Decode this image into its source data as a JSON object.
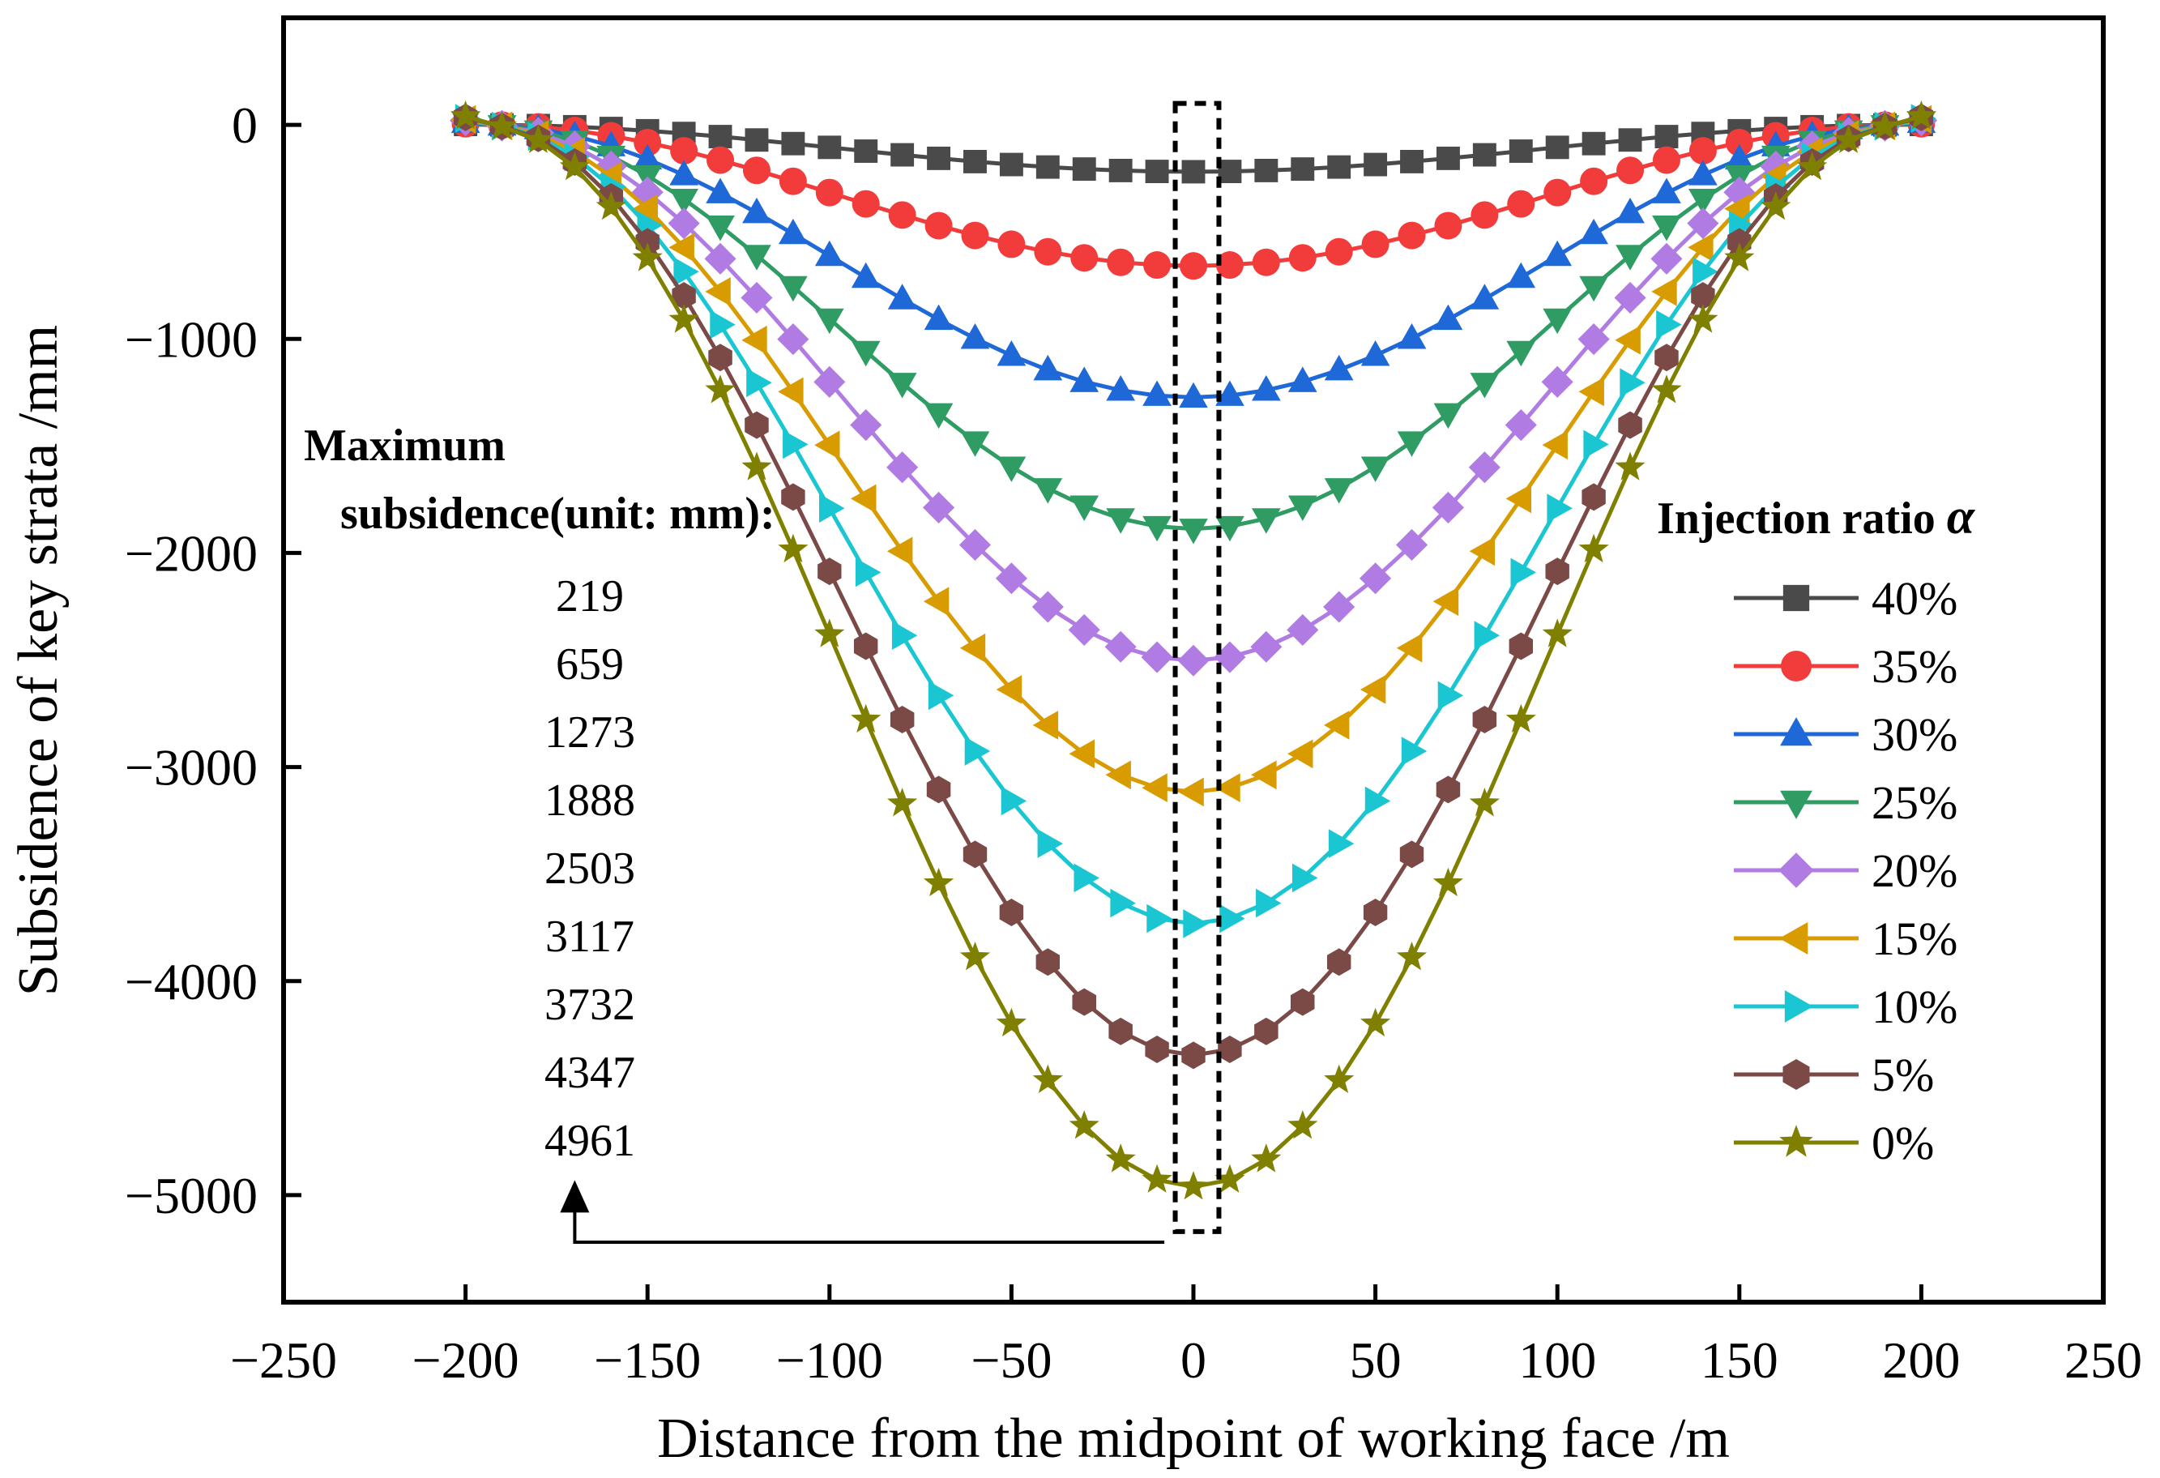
{
  "chart_data": {
    "type": "line",
    "xlabel": "Distance from the midpoint of working face /m",
    "ylabel": "Subsidence of key strata /mm",
    "xlim": [
      -250,
      250
    ],
    "ylim": [
      -5500,
      500
    ],
    "xticks": [
      -250,
      -200,
      -150,
      -100,
      -50,
      0,
      50,
      100,
      150,
      200,
      250
    ],
    "yticks": [
      0,
      -1000,
      -2000,
      -3000,
      -4000,
      -5000
    ],
    "xtick_labels": [
      "−250",
      "−200",
      "−150",
      "−100",
      "−50",
      "0",
      "50",
      "100",
      "150",
      "200",
      "250"
    ],
    "ytick_labels": [
      "0",
      "−1000",
      "−2000",
      "−3000",
      "−4000",
      "−5000"
    ],
    "grid": false,
    "legend_title": "Injection ratio ",
    "legend_symbol": "α",
    "legend_position": "right",
    "x": [
      -200,
      -190,
      -180,
      -170,
      -160,
      -150,
      -140,
      -130,
      -120,
      -110,
      -100,
      -90,
      -80,
      -70,
      -60,
      -50,
      -40,
      -30,
      -20,
      -10,
      0,
      10,
      20,
      30,
      40,
      50,
      60,
      70,
      80,
      90,
      100,
      110,
      120,
      130,
      140,
      150,
      160,
      170,
      180,
      190,
      200
    ],
    "series": [
      {
        "name": "40%",
        "color": "#4a4a4a",
        "marker": "square",
        "max_subsidence": 219
      },
      {
        "name": "35%",
        "color": "#f23c3c",
        "marker": "circle",
        "max_subsidence": 659
      },
      {
        "name": "30%",
        "color": "#1f68d8",
        "marker": "triangle-up",
        "max_subsidence": 1273
      },
      {
        "name": "25%",
        "color": "#2e9c63",
        "marker": "triangle-down",
        "max_subsidence": 1888
      },
      {
        "name": "20%",
        "color": "#b07be2",
        "marker": "diamond",
        "max_subsidence": 2503
      },
      {
        "name": "15%",
        "color": "#d89b00",
        "marker": "triangle-left",
        "max_subsidence": 3117
      },
      {
        "name": "10%",
        "color": "#19c6d1",
        "marker": "triangle-right",
        "max_subsidence": 3732
      },
      {
        "name": "5%",
        "color": "#7b4a47",
        "marker": "hexagon",
        "max_subsidence": 4347
      },
      {
        "name": "0%",
        "color": "#808000",
        "marker": "star",
        "max_subsidence": 4961
      }
    ],
    "annotation": {
      "title_line1": "Maximum",
      "title_line2": "subsidence(unit: mm):",
      "values": [
        "219",
        "659",
        "1273",
        "1888",
        "2503",
        "3117",
        "3732",
        "4347",
        "4961"
      ]
    },
    "highlight_box": {
      "x_range": [
        -5,
        7
      ],
      "y_range": [
        100,
        -5170
      ],
      "style": "dashed"
    }
  }
}
